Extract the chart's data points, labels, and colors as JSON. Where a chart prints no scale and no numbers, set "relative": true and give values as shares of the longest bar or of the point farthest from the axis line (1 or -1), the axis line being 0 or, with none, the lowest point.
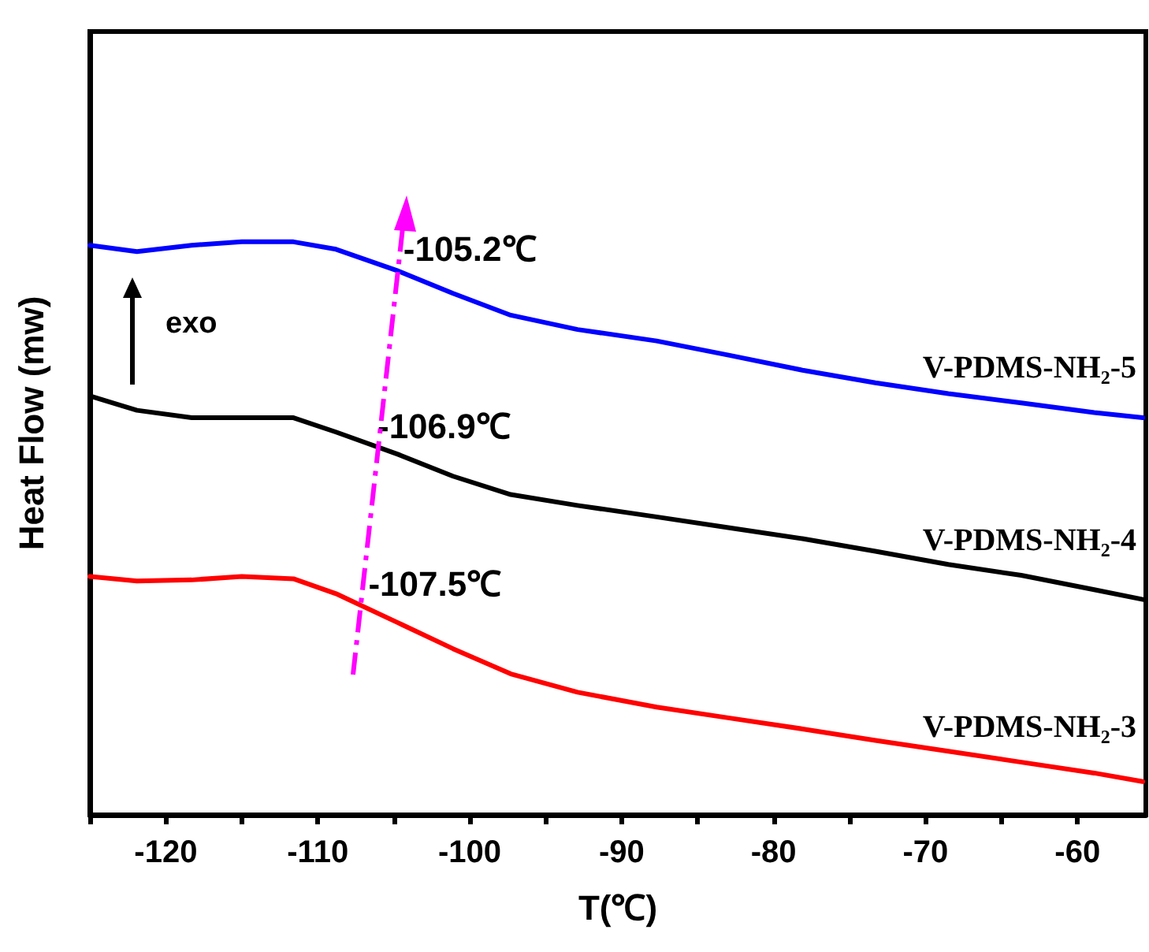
{
  "chart_data": {
    "type": "line",
    "relative": true,
    "xlabel": "T(℃)",
    "ylabel": "Heat Flow (mw)",
    "x": [
      -125,
      -121.9,
      -118.3,
      -115,
      -111.6,
      -108.8,
      -104.7,
      -101.1,
      -97.3,
      -92.9,
      -87.7,
      -82.9,
      -78.1,
      -73.3,
      -68.5,
      -63.7,
      -58.9,
      -55.7
    ],
    "xlim": [
      -125,
      -55.5
    ],
    "xticks": [
      {
        "value": -125,
        "label": null
      },
      -120,
      {
        "value": -115,
        "label": null
      },
      -110,
      {
        "value": -105,
        "label": null
      },
      -100,
      {
        "value": -95,
        "label": null
      },
      -90,
      {
        "value": -85,
        "label": null
      },
      -80,
      {
        "value": -75,
        "label": null
      },
      -70,
      {
        "value": -65,
        "label": null
      },
      -60
    ],
    "series": [
      {
        "name": "V-PDMS-NH₂-5",
        "color": "#0000ff",
        "values": [
          0.994,
          0.983,
          0.994,
          1,
          1,
          0.987,
          0.949,
          0.91,
          0.872,
          0.847,
          0.827,
          0.802,
          0.776,
          0.754,
          0.735,
          0.719,
          0.702,
          0.693
        ]
      },
      {
        "name": "V-PDMS-NH₂-4",
        "color": "#000000",
        "values": [
          0.731,
          0.706,
          0.693,
          0.693,
          0.693,
          0.668,
          0.629,
          0.591,
          0.559,
          0.54,
          0.52,
          0.501,
          0.482,
          0.46,
          0.437,
          0.418,
          0.393,
          0.376
        ]
      },
      {
        "name": "V-PDMS-NH₂-3",
        "color": "#ff0000",
        "values": [
          0.416,
          0.408,
          0.41,
          0.416,
          0.412,
          0.386,
          0.335,
          0.29,
          0.246,
          0.214,
          0.188,
          0.169,
          0.15,
          0.13,
          0.111,
          0.092,
          0.073,
          0.058
        ]
      }
    ],
    "annotations": [
      "exo",
      {
        "text": "-105.2℃",
        "x": -105.2,
        "y": 0.955
      },
      {
        "text": "-106.9℃",
        "x": -106.9,
        "y": 0.645
      },
      {
        "text": "-107.5℃",
        "x": -107.5,
        "y": 0.37
      }
    ],
    "legend": false,
    "grid": false,
    "marker": "none",
    "line_style": "solid"
  }
}
